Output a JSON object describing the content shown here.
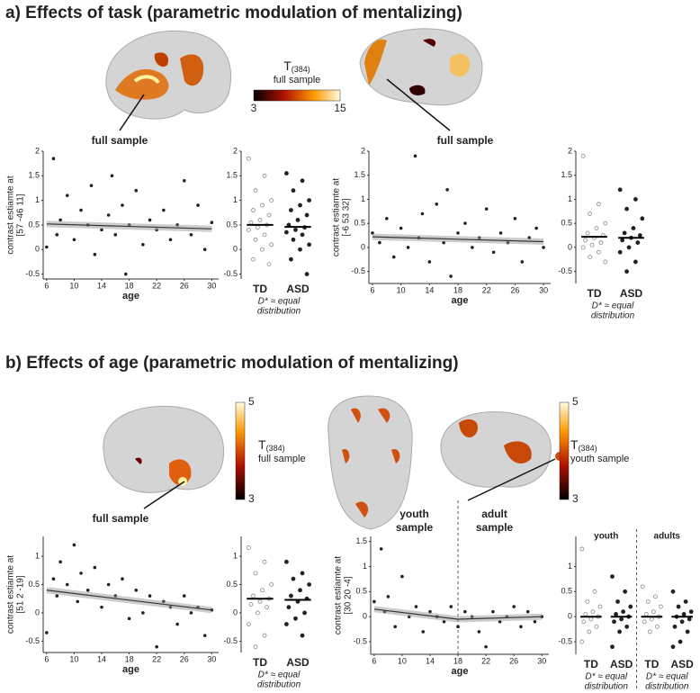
{
  "sections": [
    "a) Effects of task (parametric modulation of mentalizing)",
    "b) Effects of age (parametric modulation of mentalizing)"
  ],
  "brain_labels": [
    "full sample",
    "full sample",
    "full sample"
  ],
  "colorbars": [
    {
      "title": "T",
      "subscript": "(384)",
      "subtitle": "full sample",
      "ticks": [
        3,
        15
      ]
    },
    {
      "title": "T",
      "subscript": "(384)",
      "subtitle": "full sample",
      "ticks": [
        3,
        5
      ]
    },
    {
      "title": "T",
      "subscript": "(384)",
      "subtitle": "youth sample",
      "ticks": [
        3,
        5
      ]
    }
  ],
  "chart_data": [
    {
      "type": "scatter",
      "ylabel": [
        "contrast estiamte at",
        "[57  -46  11]"
      ],
      "xlabel": "age",
      "xlim": [
        5.5,
        31
      ],
      "xticks": [
        6,
        10,
        14,
        18,
        22,
        26,
        30
      ],
      "ylim": [
        -0.6,
        2
      ],
      "yticks": [
        -0.5,
        0,
        0.5,
        1,
        1.5,
        2
      ],
      "color": "#222222",
      "x": [
        6,
        7,
        7.5,
        8,
        9,
        10,
        11,
        12,
        12.5,
        13,
        14,
        15,
        15.5,
        16,
        17,
        17.5,
        18,
        19,
        20,
        21,
        22,
        23,
        24,
        25,
        26,
        27,
        28,
        29,
        30
      ],
      "y": [
        0.05,
        1.85,
        0.3,
        0.6,
        1.1,
        0.2,
        0.8,
        0.5,
        1.3,
        -0.1,
        0.4,
        0.7,
        1.5,
        0.3,
        0.9,
        -0.5,
        0.5,
        1.2,
        0.1,
        0.6,
        0.4,
        0.8,
        0.2,
        0.5,
        1.4,
        0.3,
        0.9,
        0.0,
        0.55
      ],
      "fits": [
        {
          "x": [
            6,
            30
          ],
          "y": [
            0.52,
            0.42
          ]
        }
      ]
    },
    {
      "type": "strip",
      "ylim": [
        -0.6,
        2
      ],
      "yticks": [
        -0.5,
        0,
        0.5,
        1,
        1.5,
        2
      ],
      "groups": [
        {
          "label": "TD",
          "color": "#bbbbbb",
          "mean": 0.5,
          "values": [
            1.85,
            1.5,
            1.2,
            1.0,
            0.9,
            0.8,
            0.7,
            0.6,
            0.55,
            0.5,
            0.45,
            0.4,
            0.3,
            0.2,
            0.1,
            0.0,
            -0.2,
            -0.3
          ]
        },
        {
          "label": "ASD",
          "color": "#222222",
          "mean": 0.46,
          "values": [
            1.55,
            1.4,
            1.2,
            1.0,
            0.9,
            0.8,
            0.7,
            0.6,
            0.5,
            0.45,
            0.4,
            0.35,
            0.3,
            0.2,
            0.1,
            0.0,
            -0.2,
            -0.5
          ]
        }
      ],
      "notes": [
        [
          "D* ≈ equal",
          "distribution"
        ]
      ]
    },
    {
      "type": "scatter",
      "ylabel": [
        "contrast estiamte at",
        "[-6  53  32]"
      ],
      "xlabel": "age",
      "xlim": [
        5.5,
        31
      ],
      "xticks": [
        6,
        10,
        14,
        18,
        22,
        26,
        30
      ],
      "ylim": [
        -0.75,
        2
      ],
      "yticks": [
        -0.5,
        0,
        0.5,
        1,
        1.5,
        2
      ],
      "color": "#222222",
      "x": [
        6,
        7,
        8,
        9,
        10,
        11,
        12,
        12.5,
        13,
        14,
        15,
        16,
        16.5,
        17,
        18,
        19,
        20,
        21,
        22,
        23,
        24,
        25,
        26,
        27,
        28,
        29,
        30
      ],
      "y": [
        0.3,
        0.1,
        0.6,
        -0.2,
        0.4,
        0.0,
        1.9,
        0.2,
        0.7,
        -0.3,
        0.9,
        0.1,
        1.2,
        -0.6,
        0.3,
        0.5,
        0.0,
        0.2,
        0.8,
        -0.1,
        0.3,
        0.1,
        0.6,
        -0.3,
        0.2,
        0.4,
        0.0
      ],
      "fits": [
        {
          "x": [
            6,
            30
          ],
          "y": [
            0.22,
            0.12
          ]
        }
      ]
    },
    {
      "type": "strip",
      "ylim": [
        -0.75,
        2
      ],
      "yticks": [
        -0.5,
        0,
        0.5,
        1,
        1.5,
        2
      ],
      "groups": [
        {
          "label": "TD",
          "color": "#bbbbbb",
          "mean": 0.22,
          "values": [
            1.9,
            0.9,
            0.7,
            0.5,
            0.4,
            0.3,
            0.25,
            0.2,
            0.15,
            0.1,
            0.05,
            0.0,
            -0.1,
            -0.2,
            -0.3
          ]
        },
        {
          "label": "ASD",
          "color": "#222222",
          "mean": 0.2,
          "values": [
            1.2,
            1.0,
            0.8,
            0.6,
            0.4,
            0.3,
            0.25,
            0.2,
            0.15,
            0.1,
            0.0,
            -0.1,
            -0.3,
            -0.5
          ]
        }
      ],
      "notes": [
        [
          "D* ≈ equal",
          "distribution"
        ]
      ]
    },
    {
      "type": "scatter",
      "ylabel": [
        "contrast estiamte at",
        "[51 2 -19]"
      ],
      "xlabel": "age",
      "xlim": [
        5.5,
        31
      ],
      "xticks": [
        6,
        10,
        14,
        18,
        22,
        26,
        30
      ],
      "ylim": [
        -0.7,
        1.35
      ],
      "yticks": [
        -0.5,
        0,
        0.5,
        1
      ],
      "color": "#222222",
      "x": [
        6,
        7,
        7.5,
        8,
        9,
        10,
        10.5,
        11,
        12,
        13,
        14,
        15,
        16,
        17,
        18,
        19,
        20,
        21,
        22,
        23,
        24,
        25,
        26,
        27,
        28,
        29,
        30
      ],
      "y": [
        -0.35,
        0.6,
        0.3,
        0.9,
        0.5,
        1.2,
        0.2,
        0.7,
        0.4,
        0.8,
        0.1,
        0.5,
        0.3,
        0.6,
        -0.1,
        0.4,
        0.0,
        0.3,
        -0.6,
        0.2,
        0.1,
        -0.2,
        0.3,
        0.0,
        0.1,
        -0.4,
        0.05
      ],
      "fits": [
        {
          "x": [
            6,
            30
          ],
          "y": [
            0.4,
            0.05
          ]
        }
      ]
    },
    {
      "type": "strip",
      "ylim": [
        -0.7,
        1.35
      ],
      "yticks": [
        -0.5,
        0,
        0.5,
        1
      ],
      "groups": [
        {
          "label": "TD",
          "color": "#bbbbbb",
          "mean": 0.25,
          "values": [
            1.15,
            0.9,
            0.7,
            0.5,
            0.4,
            0.3,
            0.25,
            0.2,
            0.15,
            0.1,
            0.0,
            -0.2,
            -0.4,
            -0.6
          ]
        },
        {
          "label": "ASD",
          "color": "#222222",
          "mean": 0.23,
          "values": [
            0.9,
            0.7,
            0.6,
            0.5,
            0.4,
            0.3,
            0.25,
            0.2,
            0.1,
            0.0,
            -0.1,
            -0.2,
            -0.4
          ]
        }
      ],
      "notes": [
        [
          "D* ≈ equal",
          "distribution"
        ]
      ]
    },
    {
      "type": "scatter",
      "ylabel": [
        "contrast estiamte at",
        "[30 20 -4]"
      ],
      "xlabel": "age",
      "xlim": [
        5.5,
        31
      ],
      "xticks": [
        6,
        10,
        14,
        18,
        22,
        26,
        30
      ],
      "ylim": [
        -0.75,
        1.6
      ],
      "yticks": [
        -0.5,
        0,
        0.5,
        1,
        1.5
      ],
      "color": "#222222",
      "vline": 18,
      "region_labels": [
        [
          "youth",
          "sample"
        ],
        [
          "adult",
          "sample"
        ]
      ],
      "x": [
        6,
        7,
        7.5,
        8,
        9,
        10,
        11,
        12,
        13,
        14,
        15,
        16,
        17,
        18,
        19,
        20,
        21,
        22,
        23,
        24,
        25,
        26,
        27,
        28,
        29,
        30
      ],
      "y": [
        0.3,
        1.35,
        0.1,
        0.4,
        -0.2,
        0.8,
        0.0,
        0.2,
        -0.3,
        0.1,
        0.0,
        -0.1,
        0.2,
        -0.2,
        0.1,
        0.0,
        -0.3,
        -0.6,
        0.1,
        -0.1,
        0.0,
        0.2,
        -0.2,
        0.1,
        -0.1,
        0.0
      ],
      "fits": [
        {
          "x": [
            6,
            18
          ],
          "y": [
            0.15,
            -0.05
          ]
        },
        {
          "x": [
            18,
            30
          ],
          "y": [
            -0.05,
            0.0
          ]
        }
      ]
    },
    {
      "type": "strip",
      "ylim": [
        -0.75,
        1.6
      ],
      "yticks": [
        -0.5,
        0,
        0.5,
        1
      ],
      "group_titles": [
        "youth",
        "adults"
      ],
      "groups": [
        {
          "label": "TD",
          "color": "#bbbbbb",
          "mean": 0.0,
          "values": [
            1.35,
            0.5,
            0.3,
            0.2,
            0.1,
            0.05,
            0.0,
            -0.05,
            -0.1,
            -0.2,
            -0.3,
            -0.5
          ]
        },
        {
          "label": "ASD",
          "color": "#222222",
          "mean": 0.0,
          "values": [
            0.8,
            0.5,
            0.3,
            0.2,
            0.1,
            0.05,
            0.0,
            -0.05,
            -0.1,
            -0.2,
            -0.3,
            -0.6
          ]
        },
        {
          "label": "TD",
          "color": "#bbbbbb",
          "mean": 0.0,
          "values": [
            0.6,
            0.4,
            0.3,
            0.2,
            0.1,
            0.05,
            0.0,
            -0.05,
            -0.1,
            -0.2,
            -0.3
          ]
        },
        {
          "label": "ASD",
          "color": "#222222",
          "mean": 0.0,
          "values": [
            0.5,
            0.3,
            0.2,
            0.1,
            0.05,
            0.0,
            -0.05,
            -0.1,
            -0.2,
            -0.3,
            -0.5,
            -0.6
          ]
        }
      ],
      "notes": [
        [
          "D* ≈ equal",
          "distribution"
        ],
        [
          "D* ≈ equal",
          "distribution"
        ]
      ]
    }
  ]
}
